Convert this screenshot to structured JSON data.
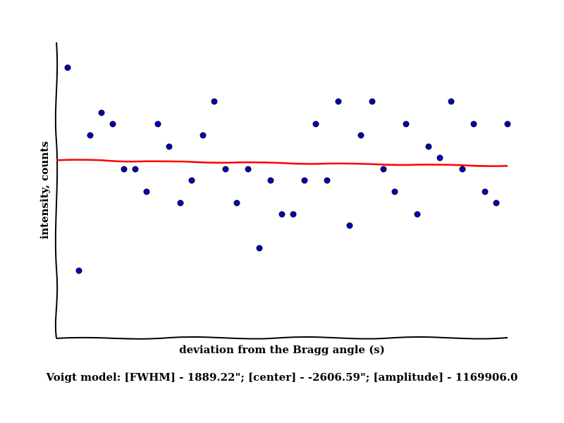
{
  "chart_data": {
    "type": "scatter",
    "title": "",
    "xlabel": "deviation from the Bragg angle (s)",
    "ylabel": "intensity, counts",
    "caption": "Voigt model:   [FWHM] - 1889.22\"; [center] - -2606.59\"; [amplitude] - 1169906.0",
    "grid": false,
    "ticks_shown": false,
    "xlim": [
      0,
      40
    ],
    "ylim": [
      0,
      26
    ],
    "series": [
      {
        "marker": "circle",
        "color": "#0000cc",
        "x": [
          1,
          2,
          3,
          4,
          5,
          6,
          7,
          8,
          9,
          10,
          11,
          12,
          13,
          14,
          15,
          16,
          17,
          18,
          19,
          20,
          21,
          22,
          23,
          24,
          25,
          26,
          27,
          28,
          29,
          30,
          31,
          32,
          33,
          34,
          35,
          36,
          37,
          38,
          39,
          40
        ],
        "y": [
          24,
          6,
          18,
          20,
          19,
          15,
          15,
          13,
          19,
          17,
          12,
          14,
          18,
          21,
          15,
          12,
          15,
          8,
          14,
          11,
          11,
          14,
          19,
          14,
          21,
          10,
          18,
          21,
          15,
          13,
          19,
          11,
          17,
          16,
          21,
          15,
          19,
          13,
          12,
          19
        ]
      },
      {
        "type": "line",
        "color": "#ff0000",
        "x": [
          0,
          4,
          8,
          12,
          16,
          20,
          24,
          28,
          32,
          36,
          40
        ],
        "y": [
          15.8,
          15.8,
          15.7,
          15.65,
          15.6,
          15.55,
          15.5,
          15.45,
          15.4,
          15.35,
          15.3
        ]
      }
    ]
  }
}
